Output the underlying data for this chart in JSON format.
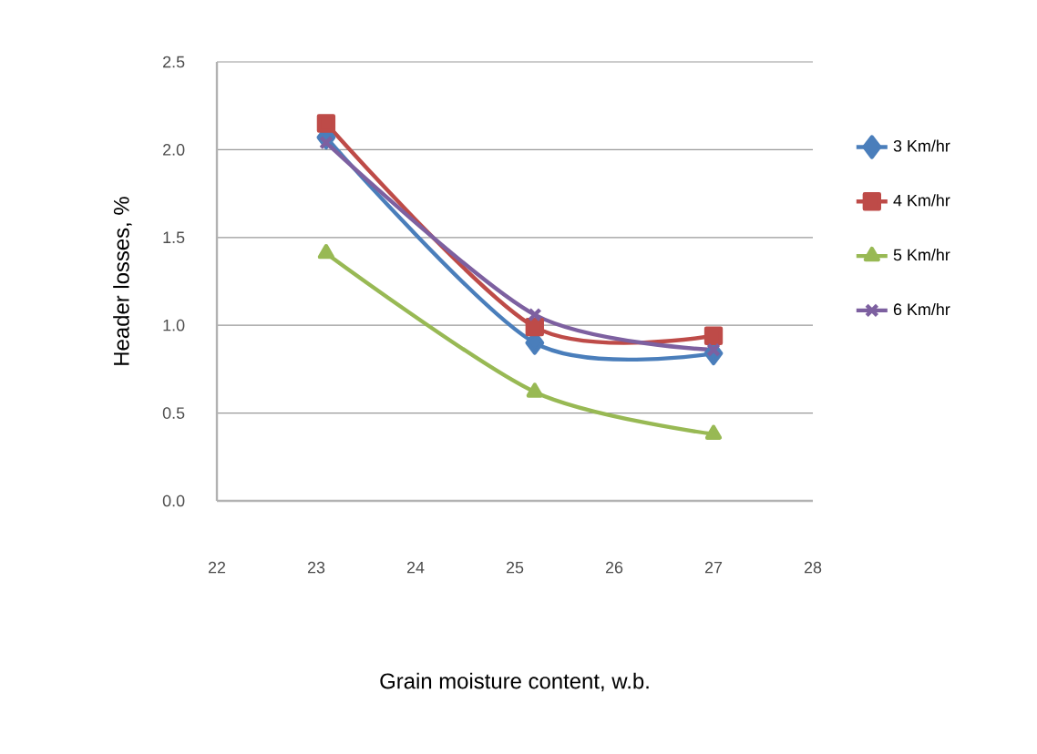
{
  "chart_data": {
    "type": "line",
    "xlabel": "Grain moisture content, w.b.",
    "ylabel": "Header losses, %",
    "xlim": [
      22,
      28
    ],
    "xticks": [
      22,
      23,
      24,
      25,
      26,
      27,
      28
    ],
    "ylim": [
      0,
      2.5
    ],
    "yticks": [
      {
        "value": 0,
        "label": "0.0"
      },
      {
        "value": 0.5,
        "label": "0.5"
      },
      {
        "value": 1,
        "label": "1.0"
      },
      {
        "value": 1.5,
        "label": "1.5"
      },
      {
        "value": 2,
        "label": "2.0"
      },
      {
        "value": 2.5,
        "label": "2.5"
      }
    ],
    "grid": "y",
    "legend": "right",
    "x": [
      23.1,
      25.2,
      27.0
    ],
    "series": [
      {
        "name": "3 Km/hr",
        "color": "#4a7ebb",
        "marker": "diamond",
        "values": [
          2.07,
          0.9,
          0.84
        ]
      },
      {
        "name": "4 Km/hr",
        "color": "#be4b48",
        "marker": "square",
        "values": [
          2.15,
          0.99,
          0.94
        ]
      },
      {
        "name": "5 Km/hr",
        "color": "#98b954",
        "marker": "triangle",
        "values": [
          1.41,
          0.62,
          0.38
        ]
      },
      {
        "name": "6 Km/hr",
        "color": "#7d60a0",
        "marker": "cross",
        "values": [
          2.04,
          1.06,
          0.86
        ]
      }
    ]
  }
}
